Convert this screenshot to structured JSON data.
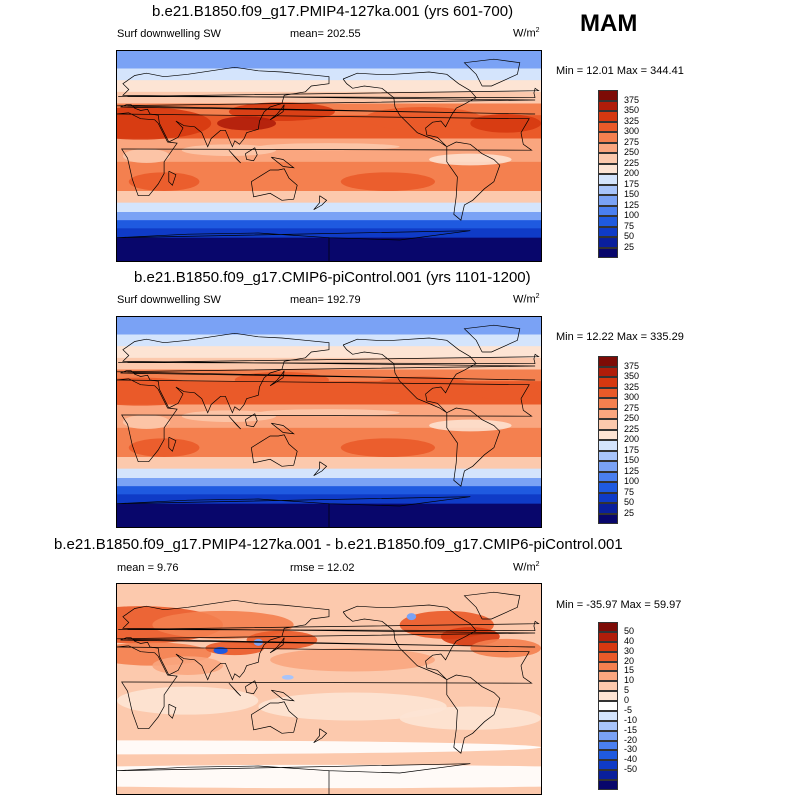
{
  "season": "MAM",
  "colors": {
    "abs_scale": [
      "#08066b",
      "#0a1f9c",
      "#0f3bc7",
      "#1f5ae0",
      "#4a7ff0",
      "#7aa2f5",
      "#a8c4fa",
      "#d4e4fc",
      "#fde4d4",
      "#fcc9ad",
      "#faa67f",
      "#f4804f",
      "#ea5a29",
      "#d63810",
      "#b01d0a",
      "#7d0b06"
    ],
    "diff_scale": [
      "#08066b",
      "#0a1f9c",
      "#0f3bc7",
      "#1f5ae0",
      "#4a7ff0",
      "#7aa2f5",
      "#a8c4fa",
      "#d4e4fc",
      "#ffffff",
      "#fde4d4",
      "#fcc9ad",
      "#faa67f",
      "#f4804f",
      "#ea5a29",
      "#d63810",
      "#b01d0a",
      "#7d0b06"
    ]
  },
  "panels": [
    {
      "title": "b.e21.B1850.f09_g17.PMIP4-127ka.001 (yrs 601-700)",
      "left_label": "Surf downwelling SW",
      "mean_text": "mean= 202.55",
      "units": "W/m",
      "units_sup": "2",
      "minmax": "Min =  12.01 Max = 344.41",
      "colorbar_labels": [
        "375",
        "350",
        "325",
        "300",
        "275",
        "250",
        "225",
        "200",
        "175",
        "150",
        "125",
        "100",
        "75",
        "50",
        "25"
      ],
      "kind": "abs"
    },
    {
      "title": "b.e21.B1850.f09_g17.CMIP6-piControl.001 (yrs 1101-1200)",
      "left_label": "Surf downwelling SW",
      "mean_text": "mean= 192.79",
      "units": "W/m",
      "units_sup": "2",
      "minmax": "Min =  12.22 Max = 335.29",
      "colorbar_labels": [
        "375",
        "350",
        "325",
        "300",
        "275",
        "250",
        "225",
        "200",
        "175",
        "150",
        "125",
        "100",
        "75",
        "50",
        "25"
      ],
      "kind": "abs"
    },
    {
      "title": "b.e21.B1850.f09_g17.PMIP4-127ka.001 - b.e21.B1850.f09_g17.CMIP6-piControl.001",
      "left_label": "mean =   9.76",
      "mean_text": "rmse =  12.02",
      "units": "W/m",
      "units_sup": "2",
      "minmax": "Min = -35.97 Max =  59.97",
      "colorbar_labels": [
        "50",
        "40",
        "30",
        "20",
        "15",
        "10",
        "5",
        "0",
        "-5",
        "-10",
        "-15",
        "-20",
        "-30",
        "-40",
        "-50"
      ],
      "kind": "diff"
    }
  ]
}
